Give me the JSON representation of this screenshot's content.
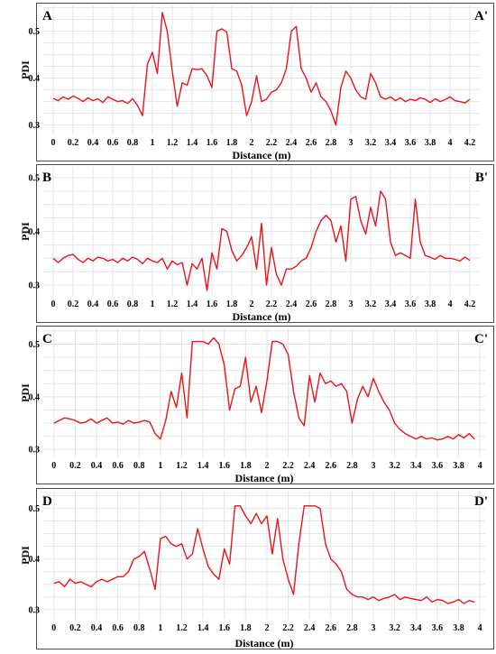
{
  "chart_data": [
    {
      "type": "line",
      "corner_left": "A",
      "corner_right": "A'",
      "xlabel": "Distance (m)",
      "ylabel": "PDI",
      "xlim": [
        -0.1,
        4.3
      ],
      "ylim": [
        0.28,
        0.555
      ],
      "xticks": [
        0,
        0.2,
        0.4,
        0.6,
        0.8,
        1,
        1.2,
        1.4,
        1.6,
        1.8,
        2,
        2.2,
        2.4,
        2.6,
        2.8,
        3,
        3.2,
        3.4,
        3.6,
        3.8,
        4,
        4.2
      ],
      "xtick_labels": [
        "0",
        "0.2",
        "0.4",
        "0.6",
        "0.8",
        "1",
        "1.2",
        "1.4",
        "1.6",
        "1.8",
        "2",
        "2.2",
        "2.4",
        "2.6",
        "2.8",
        "3",
        "3.2",
        "3.4",
        "3.6",
        "3.8",
        "4",
        "4.2"
      ],
      "yticks": [
        0.3,
        0.4,
        0.5
      ],
      "ytick_labels": [
        "0.3",
        "0.4",
        "0.5"
      ],
      "grid": true,
      "series": [
        {
          "color": "#e8141c",
          "x": [
            0,
            0.05,
            0.1,
            0.15,
            0.2,
            0.25,
            0.3,
            0.35,
            0.4,
            0.45,
            0.5,
            0.55,
            0.6,
            0.65,
            0.7,
            0.75,
            0.8,
            0.85,
            0.9,
            0.95,
            1.0,
            1.05,
            1.1,
            1.15,
            1.2,
            1.25,
            1.3,
            1.35,
            1.4,
            1.45,
            1.5,
            1.55,
            1.6,
            1.65,
            1.7,
            1.75,
            1.8,
            1.85,
            1.9,
            1.95,
            2.0,
            2.05,
            2.1,
            2.15,
            2.2,
            2.25,
            2.3,
            2.35,
            2.4,
            2.45,
            2.5,
            2.55,
            2.6,
            2.65,
            2.7,
            2.75,
            2.8,
            2.85,
            2.9,
            2.95,
            3.0,
            3.05,
            3.1,
            3.15,
            3.2,
            3.25,
            3.3,
            3.35,
            3.4,
            3.45,
            3.5,
            3.55,
            3.6,
            3.65,
            3.7,
            3.75,
            3.8,
            3.85,
            3.9,
            3.95,
            4.0,
            4.05,
            4.1,
            4.15,
            4.2
          ],
          "y": [
            0.357,
            0.352,
            0.36,
            0.355,
            0.362,
            0.357,
            0.35,
            0.358,
            0.352,
            0.356,
            0.348,
            0.36,
            0.355,
            0.35,
            0.352,
            0.346,
            0.356,
            0.342,
            0.32,
            0.43,
            0.455,
            0.41,
            0.54,
            0.5,
            0.415,
            0.34,
            0.39,
            0.385,
            0.42,
            0.418,
            0.42,
            0.405,
            0.38,
            0.5,
            0.505,
            0.498,
            0.42,
            0.415,
            0.385,
            0.32,
            0.35,
            0.405,
            0.35,
            0.355,
            0.37,
            0.375,
            0.39,
            0.42,
            0.5,
            0.51,
            0.42,
            0.4,
            0.37,
            0.39,
            0.36,
            0.35,
            0.33,
            0.3,
            0.38,
            0.415,
            0.4,
            0.375,
            0.36,
            0.355,
            0.41,
            0.39,
            0.36,
            0.355,
            0.36,
            0.352,
            0.358,
            0.35,
            0.355,
            0.352,
            0.358,
            0.355,
            0.348,
            0.356,
            0.35,
            0.354,
            0.36,
            0.352,
            0.35,
            0.347,
            0.355
          ]
        }
      ]
    },
    {
      "type": "line",
      "corner_left": "B",
      "corner_right": "B'",
      "xlabel": "Distance (m)",
      "ylabel": "PDI",
      "xlim": [
        -0.1,
        4.3
      ],
      "ylim": [
        0.28,
        0.52
      ],
      "xticks": [
        0,
        0.2,
        0.4,
        0.6,
        0.8,
        1,
        1.2,
        1.4,
        1.6,
        1.8,
        2,
        2.2,
        2.4,
        2.6,
        2.8,
        3,
        3.2,
        3.4,
        3.6,
        3.8,
        4,
        4.2
      ],
      "xtick_labels": [
        "0",
        "0.2",
        "0.4",
        "0.6",
        "0.8",
        "1",
        "1.2",
        "1.4",
        "1.6",
        "1.8",
        "2",
        "2.2",
        "2.4",
        "2.6",
        "2.8",
        "3",
        "3.2",
        "3.4",
        "3.6",
        "3.8",
        "4",
        "4.2"
      ],
      "yticks": [
        0.3,
        0.4,
        0.5
      ],
      "ytick_labels": [
        "0.3",
        "0.4",
        "0.5"
      ],
      "grid": true,
      "series": [
        {
          "color": "#e8141c",
          "x": [
            0,
            0.05,
            0.1,
            0.15,
            0.2,
            0.25,
            0.3,
            0.35,
            0.4,
            0.45,
            0.5,
            0.55,
            0.6,
            0.65,
            0.7,
            0.75,
            0.8,
            0.85,
            0.9,
            0.95,
            1.0,
            1.05,
            1.1,
            1.15,
            1.2,
            1.25,
            1.3,
            1.35,
            1.4,
            1.45,
            1.5,
            1.55,
            1.6,
            1.65,
            1.7,
            1.75,
            1.8,
            1.85,
            1.9,
            1.95,
            2.0,
            2.05,
            2.1,
            2.15,
            2.2,
            2.25,
            2.3,
            2.35,
            2.4,
            2.45,
            2.5,
            2.55,
            2.6,
            2.65,
            2.7,
            2.75,
            2.8,
            2.85,
            2.9,
            2.95,
            3.0,
            3.05,
            3.1,
            3.15,
            3.2,
            3.25,
            3.3,
            3.35,
            3.4,
            3.45,
            3.5,
            3.55,
            3.6,
            3.65,
            3.7,
            3.75,
            3.8,
            3.85,
            3.9,
            3.95,
            4.0,
            4.05,
            4.1,
            4.15,
            4.2
          ],
          "y": [
            0.35,
            0.342,
            0.35,
            0.355,
            0.357,
            0.348,
            0.342,
            0.35,
            0.345,
            0.352,
            0.35,
            0.345,
            0.348,
            0.342,
            0.35,
            0.345,
            0.352,
            0.348,
            0.34,
            0.35,
            0.345,
            0.342,
            0.35,
            0.33,
            0.345,
            0.338,
            0.342,
            0.3,
            0.34,
            0.33,
            0.35,
            0.29,
            0.36,
            0.33,
            0.405,
            0.4,
            0.365,
            0.345,
            0.355,
            0.37,
            0.39,
            0.33,
            0.415,
            0.3,
            0.37,
            0.32,
            0.3,
            0.33,
            0.33,
            0.335,
            0.345,
            0.35,
            0.37,
            0.4,
            0.42,
            0.43,
            0.42,
            0.38,
            0.41,
            0.345,
            0.46,
            0.465,
            0.42,
            0.395,
            0.445,
            0.41,
            0.475,
            0.46,
            0.38,
            0.355,
            0.36,
            0.355,
            0.35,
            0.46,
            0.38,
            0.355,
            0.352,
            0.348,
            0.355,
            0.35,
            0.35,
            0.348,
            0.345,
            0.352,
            0.346
          ]
        }
      ]
    },
    {
      "type": "line",
      "corner_left": "C",
      "corner_right": "C'",
      "xlabel": "Distance (m)",
      "ylabel": "PDI",
      "xlim": [
        -0.1,
        4.05
      ],
      "ylim": [
        0.285,
        0.53
      ],
      "xticks": [
        0,
        0.2,
        0.4,
        0.6,
        0.8,
        1,
        1.2,
        1.4,
        1.6,
        1.8,
        2,
        2.2,
        2.4,
        2.6,
        2.8,
        3,
        3.2,
        3.4,
        3.6,
        3.8,
        4
      ],
      "xtick_labels": [
        "0",
        "0.2",
        "0.4",
        "0.6",
        "0.8",
        "1",
        "1.2",
        "1.4",
        "1.6",
        "1.8",
        "2",
        "2.2",
        "2.4",
        "2.6",
        "2.8",
        "3",
        "3.2",
        "3.4",
        "3.6",
        "3.8",
        "4"
      ],
      "yticks": [
        0.3,
        0.4,
        0.5
      ],
      "ytick_labels": [
        "0.3",
        "0.4",
        "0.5"
      ],
      "grid": true,
      "series": [
        {
          "color": "#e8141c",
          "x": [
            0,
            0.05,
            0.1,
            0.15,
            0.2,
            0.25,
            0.3,
            0.35,
            0.4,
            0.45,
            0.5,
            0.55,
            0.6,
            0.65,
            0.7,
            0.75,
            0.8,
            0.85,
            0.9,
            0.95,
            1.0,
            1.05,
            1.1,
            1.15,
            1.2,
            1.25,
            1.3,
            1.35,
            1.4,
            1.45,
            1.5,
            1.55,
            1.6,
            1.65,
            1.7,
            1.75,
            1.8,
            1.85,
            1.9,
            1.95,
            2.0,
            2.05,
            2.1,
            2.15,
            2.2,
            2.25,
            2.3,
            2.35,
            2.4,
            2.45,
            2.5,
            2.55,
            2.6,
            2.65,
            2.7,
            2.75,
            2.8,
            2.85,
            2.9,
            2.95,
            3.0,
            3.05,
            3.1,
            3.15,
            3.2,
            3.25,
            3.3,
            3.35,
            3.4,
            3.45,
            3.5,
            3.55,
            3.6,
            3.65,
            3.7,
            3.75,
            3.8,
            3.85,
            3.9,
            3.95
          ],
          "y": [
            0.35,
            0.355,
            0.36,
            0.358,
            0.355,
            0.35,
            0.352,
            0.358,
            0.35,
            0.355,
            0.36,
            0.35,
            0.352,
            0.348,
            0.355,
            0.35,
            0.352,
            0.355,
            0.352,
            0.33,
            0.32,
            0.355,
            0.41,
            0.38,
            0.445,
            0.36,
            0.505,
            0.505,
            0.505,
            0.5,
            0.512,
            0.5,
            0.46,
            0.375,
            0.415,
            0.42,
            0.475,
            0.39,
            0.42,
            0.37,
            0.43,
            0.505,
            0.505,
            0.5,
            0.48,
            0.41,
            0.36,
            0.345,
            0.44,
            0.39,
            0.445,
            0.425,
            0.43,
            0.42,
            0.425,
            0.41,
            0.35,
            0.395,
            0.42,
            0.4,
            0.435,
            0.41,
            0.39,
            0.375,
            0.35,
            0.338,
            0.33,
            0.325,
            0.32,
            0.325,
            0.32,
            0.322,
            0.318,
            0.32,
            0.325,
            0.32,
            0.328,
            0.322,
            0.33,
            0.32
          ]
        }
      ]
    },
    {
      "type": "line",
      "corner_left": "D",
      "corner_right": "D'",
      "xlabel": "Distance (m)",
      "ylabel": "PDI",
      "xlim": [
        -0.1,
        4.05
      ],
      "ylim": [
        0.28,
        0.535
      ],
      "xticks": [
        0,
        0.2,
        0.4,
        0.6,
        0.8,
        1,
        1.2,
        1.4,
        1.6,
        1.8,
        2,
        2.2,
        2.4,
        2.6,
        2.8,
        3,
        3.2,
        3.4,
        3.6,
        3.8,
        4
      ],
      "xtick_labels": [
        "0",
        "0.2",
        "0.4",
        "0.6",
        "0.8",
        "1",
        "1.2",
        "1.4",
        "1.6",
        "1.8",
        "2",
        "2.2",
        "2.4",
        "2.6",
        "2.8",
        "3",
        "3.2",
        "3.4",
        "3.6",
        "3.8",
        "4"
      ],
      "yticks": [
        0.3,
        0.4,
        0.5
      ],
      "ytick_labels": [
        "0.3",
        "0.4",
        "0.5"
      ],
      "grid": true,
      "series": [
        {
          "color": "#e8141c",
          "x": [
            0,
            0.05,
            0.1,
            0.15,
            0.2,
            0.25,
            0.3,
            0.35,
            0.4,
            0.45,
            0.5,
            0.55,
            0.6,
            0.65,
            0.7,
            0.75,
            0.8,
            0.85,
            0.9,
            0.95,
            1.0,
            1.05,
            1.1,
            1.15,
            1.2,
            1.25,
            1.3,
            1.35,
            1.4,
            1.45,
            1.5,
            1.55,
            1.6,
            1.65,
            1.7,
            1.75,
            1.8,
            1.85,
            1.9,
            1.95,
            2.0,
            2.05,
            2.1,
            2.15,
            2.2,
            2.25,
            2.3,
            2.35,
            2.4,
            2.45,
            2.5,
            2.55,
            2.6,
            2.65,
            2.7,
            2.75,
            2.8,
            2.85,
            2.9,
            2.95,
            3.0,
            3.05,
            3.1,
            3.15,
            3.2,
            3.25,
            3.3,
            3.35,
            3.4,
            3.45,
            3.5,
            3.55,
            3.6,
            3.65,
            3.7,
            3.75,
            3.8,
            3.85,
            3.9,
            3.95
          ],
          "y": [
            0.352,
            0.355,
            0.345,
            0.36,
            0.352,
            0.355,
            0.35,
            0.345,
            0.355,
            0.36,
            0.355,
            0.36,
            0.365,
            0.365,
            0.375,
            0.4,
            0.405,
            0.415,
            0.38,
            0.34,
            0.44,
            0.445,
            0.43,
            0.425,
            0.43,
            0.4,
            0.41,
            0.46,
            0.42,
            0.385,
            0.37,
            0.36,
            0.42,
            0.39,
            0.505,
            0.505,
            0.485,
            0.47,
            0.49,
            0.47,
            0.485,
            0.41,
            0.48,
            0.4,
            0.36,
            0.33,
            0.43,
            0.505,
            0.505,
            0.505,
            0.5,
            0.43,
            0.4,
            0.39,
            0.375,
            0.34,
            0.33,
            0.325,
            0.325,
            0.32,
            0.325,
            0.318,
            0.322,
            0.325,
            0.33,
            0.32,
            0.325,
            0.322,
            0.32,
            0.318,
            0.325,
            0.315,
            0.32,
            0.318,
            0.312,
            0.315,
            0.32,
            0.312,
            0.318,
            0.315
          ]
        }
      ]
    }
  ]
}
